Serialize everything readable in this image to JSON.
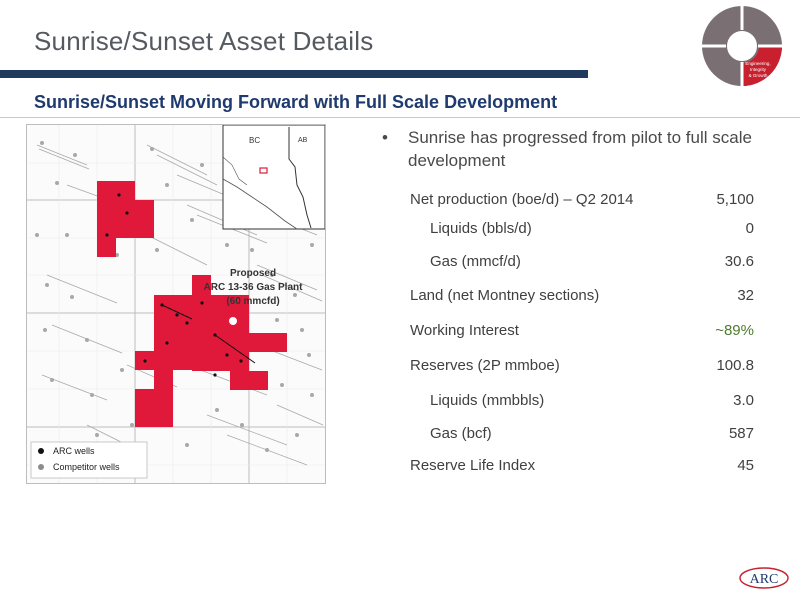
{
  "slide": {
    "title": "Sunrise/Sunset Asset Details",
    "subtitle": "Sunrise/Sunset Moving Forward with Full Scale Development"
  },
  "logo_wheel": {
    "segment_text": [
      "Engineering,",
      "Integrity",
      "& Growth"
    ],
    "colors": {
      "ring": "#7a6f73",
      "highlight": "#c8202f"
    }
  },
  "map": {
    "inset_labels": [
      "BC",
      "AB"
    ],
    "plant_label": [
      "Proposed",
      "ARC 13-36 Gas Plant",
      "(60 mmcfd)"
    ],
    "legend": [
      {
        "label": "ARC wells",
        "color": "#111111"
      },
      {
        "label": "Competitor wells",
        "color": "#8c8c8c"
      }
    ],
    "land_color": "#e0193a"
  },
  "bullet": {
    "marker": "•",
    "text": "Sunrise has progressed from pilot to full scale development"
  },
  "stats": [
    {
      "label": "Net production (boe/d) – Q2 2014",
      "value": "5,100"
    },
    {
      "label": "Liquids (bbls/d)",
      "value": "0",
      "indent": true
    },
    {
      "label": "Gas (mmcf/d)",
      "value": "30.6",
      "indent": true
    },
    {
      "label": "Land (net Montney sections)",
      "value": "32"
    },
    {
      "label": "Working Interest",
      "value": "~89%",
      "highlight": true
    },
    {
      "label": "Reserves (2P mmboe)",
      "value": "100.8"
    },
    {
      "label": "Liquids (mmbbls)",
      "value": "3.0",
      "indent": true
    },
    {
      "label": "Gas (bcf)",
      "value": "587",
      "indent": true
    },
    {
      "label": "Reserve Life Index",
      "value": "45"
    }
  ],
  "arc_logo": {
    "text": "ARC"
  }
}
